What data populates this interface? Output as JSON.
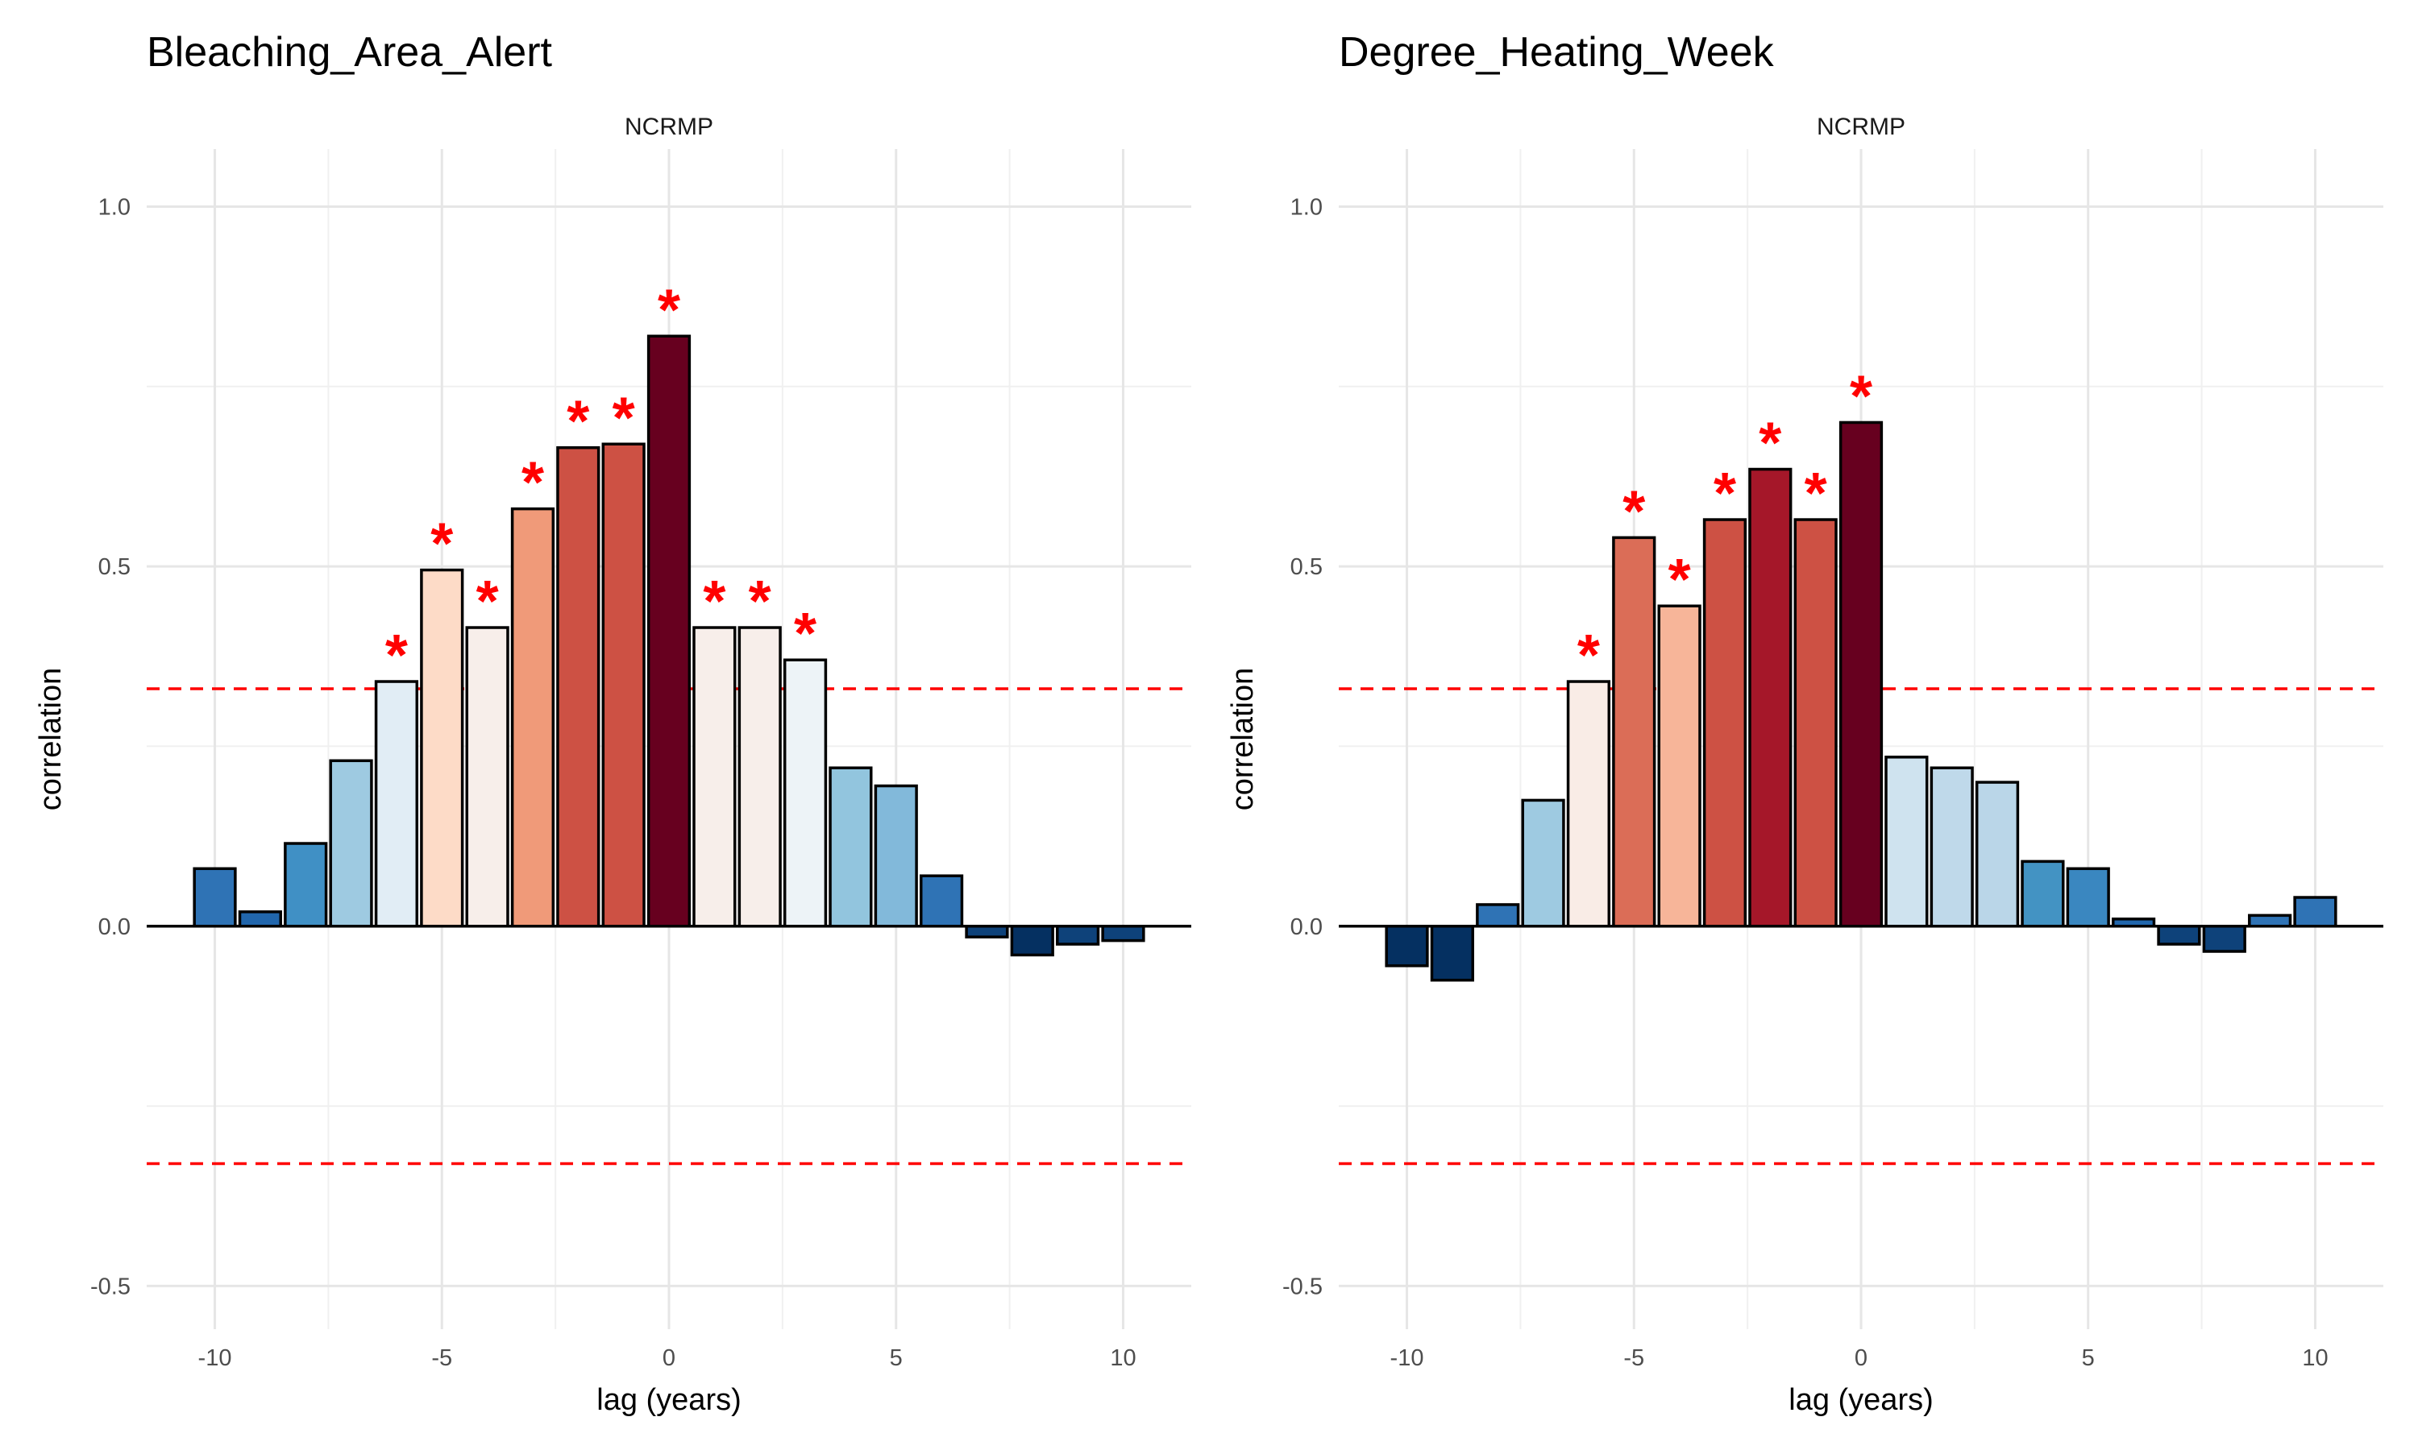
{
  "chart_data": [
    {
      "type": "bar",
      "title": "Bleaching_Area_Alert",
      "subtitle": "NCRMP",
      "xlabel": "lag (years)",
      "ylabel": "correlation",
      "xlim": [
        -11.5,
        11.5
      ],
      "ylim": [
        -0.56,
        1.08
      ],
      "xticks": [
        -10,
        -5,
        0,
        5,
        10
      ],
      "yticks": [
        -0.5,
        0.0,
        0.5,
        1.0
      ],
      "ytick_labels": [
        "-0.5",
        "0.0",
        "0.5",
        "1.0"
      ],
      "significance_threshold": [
        0.33,
        -0.33
      ],
      "significance_marker": "*",
      "x": [
        -10,
        -9,
        -8,
        -7,
        -6,
        -5,
        -4,
        -3,
        -2,
        -1,
        0,
        1,
        2,
        3,
        4,
        5,
        6,
        7,
        8,
        9,
        10
      ],
      "values": [
        0.08,
        0.02,
        0.115,
        0.23,
        0.34,
        0.495,
        0.415,
        0.58,
        0.665,
        0.67,
        0.82,
        0.415,
        0.415,
        0.37,
        0.22,
        0.195,
        0.07,
        -0.015,
        -0.04,
        -0.025,
        -0.02
      ],
      "significant": [
        false,
        false,
        false,
        false,
        true,
        true,
        true,
        true,
        true,
        true,
        true,
        true,
        true,
        true,
        false,
        false,
        false,
        false,
        false,
        false,
        false
      ],
      "colors": [
        "#2f73b5",
        "#2166ac",
        "#4090c5",
        "#9ecae1",
        "#e1edf5",
        "#fddbc7",
        "#f7eeea",
        "#f09a79",
        "#cd5144",
        "#cd5144",
        "#67001f",
        "#f7eeea",
        "#f7eeea",
        "#edf3f7",
        "#92c5de",
        "#82b9da",
        "#2f73b5",
        "#0e427a",
        "#053061",
        "#0e427a",
        "#0e427a"
      ],
      "grid": true,
      "legend": "none"
    },
    {
      "type": "bar",
      "title": "Degree_Heating_Week",
      "subtitle": "NCRMP",
      "xlabel": "lag (years)",
      "ylabel": "correlation",
      "xlim": [
        -11.5,
        11.5
      ],
      "ylim": [
        -0.56,
        1.08
      ],
      "xticks": [
        -10,
        -5,
        0,
        5,
        10
      ],
      "yticks": [
        -0.5,
        0.0,
        0.5,
        1.0
      ],
      "ytick_labels": [
        "-0.5",
        "0.0",
        "0.5",
        "1.0"
      ],
      "significance_threshold": [
        0.33,
        -0.33
      ],
      "significance_marker": "*",
      "x": [
        -10,
        -9,
        -8,
        -7,
        -6,
        -5,
        -4,
        -3,
        -2,
        -1,
        0,
        1,
        2,
        3,
        4,
        5,
        6,
        7,
        8,
        9,
        10
      ],
      "values": [
        -0.055,
        -0.075,
        0.03,
        0.175,
        0.34,
        0.54,
        0.445,
        0.565,
        0.635,
        0.565,
        0.7,
        0.235,
        0.22,
        0.2,
        0.09,
        0.08,
        0.01,
        -0.025,
        -0.035,
        0.015,
        0.04
      ],
      "significant": [
        false,
        false,
        false,
        false,
        true,
        true,
        true,
        true,
        true,
        true,
        true,
        false,
        false,
        false,
        false,
        false,
        false,
        false,
        false,
        false,
        false
      ],
      "colors": [
        "#053061",
        "#053061",
        "#2f73b5",
        "#9ecae1",
        "#f9ece6",
        "#db6d57",
        "#f7b599",
        "#cd5144",
        "#a51729",
        "#cd5144",
        "#67001f",
        "#cfe3ef",
        "#bfd9ea",
        "#bad6e8",
        "#4393c3",
        "#3a87c0",
        "#2166ac",
        "#0e427a",
        "#0e427a",
        "#2f73b5",
        "#2f73b5"
      ],
      "grid": true,
      "legend": "none"
    }
  ]
}
